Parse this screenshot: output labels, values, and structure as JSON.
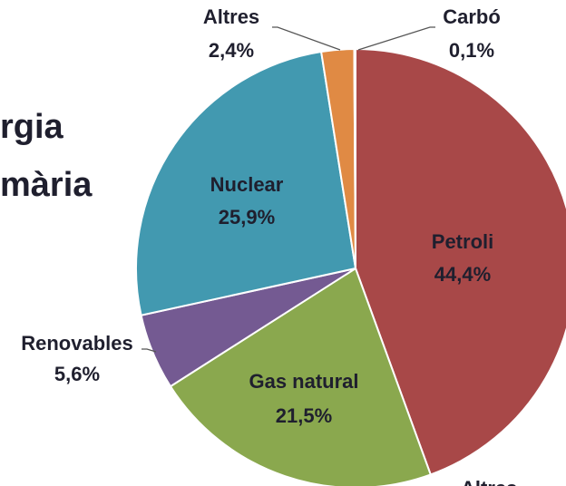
{
  "chart_data": {
    "type": "pie",
    "title_lines": [
      "rgia",
      "mària"
    ],
    "categories": [
      "Petroli",
      "Gas natural",
      "Renovables",
      "Nuclear",
      "Altres",
      "Carbó"
    ],
    "values": [
      44.4,
      21.5,
      5.6,
      25.9,
      2.4,
      0.1
    ],
    "value_labels": [
      "44,4%",
      "21,5%",
      "5,6%",
      "25,9%",
      "2,4%",
      "0,1%"
    ],
    "colors": [
      "#a84848",
      "#8aa84e",
      "#745a92",
      "#4299b0",
      "#e08a44",
      "#4b7cb8"
    ],
    "annotations": [
      "Altres"
    ]
  }
}
